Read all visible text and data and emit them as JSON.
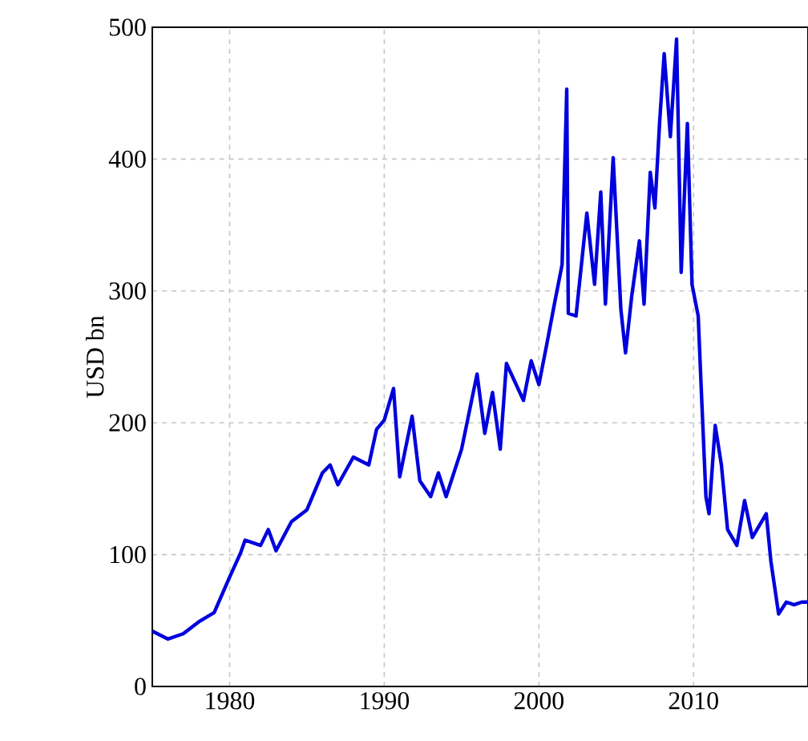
{
  "chart_data": {
    "type": "line",
    "ylabel": "USD bn",
    "xlim": [
      1975,
      2017.4
    ],
    "ylim": [
      0,
      500
    ],
    "xticks": [
      1980,
      1990,
      2000,
      2010
    ],
    "yticks": [
      0,
      100,
      200,
      300,
      400,
      500
    ],
    "grid": true,
    "marker": "none",
    "line_style": "solid",
    "series": [
      {
        "color": "#0000dd",
        "x": [
          1975,
          1976,
          1977,
          1978,
          1979,
          1980,
          1980.7,
          1981,
          1982,
          1982.5,
          1983,
          1984,
          1985,
          1986,
          1986.5,
          1987,
          1988,
          1989,
          1989.5,
          1990,
          1990.6,
          1991,
          1991.8,
          1992.3,
          1993,
          1993.5,
          1994,
          1995,
          1996,
          1996.5,
          1997,
          1997.5,
          1997.9,
          1999,
          1999.5,
          2000,
          2000.5,
          2001,
          2001.5,
          2001.8,
          2001.9,
          2002.4,
          2003.1,
          2003.6,
          2004,
          2004.3,
          2004.8,
          2005.3,
          2005.6,
          2006,
          2006.5,
          2006.8,
          2007.2,
          2007.5,
          2007.8,
          2008.1,
          2008.5,
          2008.9,
          2009.2,
          2009.6,
          2009.9,
          2010.3,
          2010.5,
          2010.8,
          2011,
          2011.4,
          2011.8,
          2012.2,
          2012.8,
          2013.3,
          2013.8,
          2014.7,
          2015,
          2015.5,
          2016,
          2016.5,
          2017,
          2017.4
        ],
        "values": [
          42,
          36,
          40,
          49,
          56,
          83,
          101,
          111,
          107,
          119,
          103,
          125,
          134,
          162,
          168,
          153,
          174,
          168,
          195,
          202,
          226,
          159,
          205,
          156,
          144,
          162,
          144,
          180,
          237,
          192,
          223,
          180,
          245,
          217,
          247,
          229,
          259,
          290,
          320,
          453,
          283,
          281,
          359,
          305,
          375,
          290,
          401,
          286,
          253,
          296,
          338,
          290,
          390,
          363,
          427,
          480,
          417,
          491,
          314,
          427,
          305,
          281,
          225,
          144,
          131,
          198,
          168,
          119,
          107,
          141,
          113,
          131,
          95,
          55,
          64,
          62,
          64,
          64
        ]
      }
    ]
  }
}
